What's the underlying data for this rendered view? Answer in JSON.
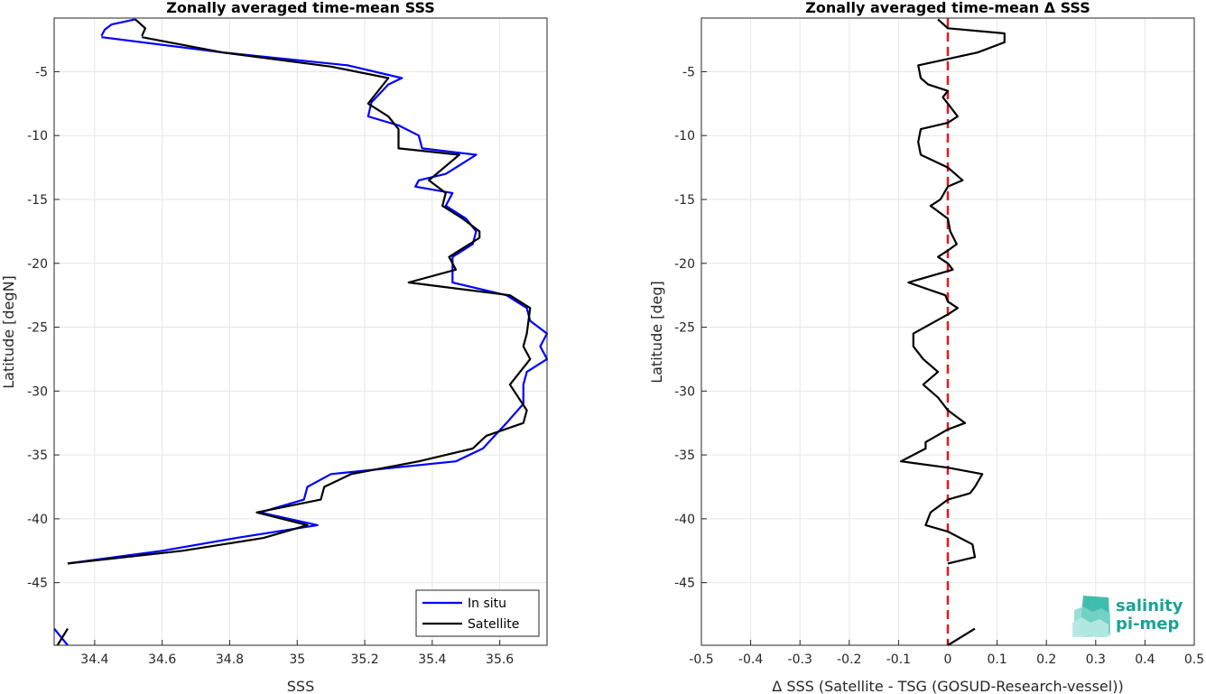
{
  "chart_data": [
    {
      "type": "line",
      "title": "Zonally averaged time-mean SSS",
      "xlabel": "SSS",
      "ylabel": "Latitude [degN]",
      "xlim": [
        34.28,
        35.74
      ],
      "ylim": [
        -49.9,
        -0.8
      ],
      "xticks": [
        34.4,
        34.6,
        34.8,
        35,
        35.2,
        35.4,
        35.6
      ],
      "xtick_labels": [
        "34.4",
        "34.6",
        "34.8",
        "35",
        "35.2",
        "35.4",
        "35.6"
      ],
      "yticks": [
        -5,
        -10,
        -15,
        -20,
        -25,
        -30,
        -35,
        -40,
        -45
      ],
      "ytick_labels": [
        "-5",
        "-10",
        "-15",
        "-20",
        "-25",
        "-30",
        "-35",
        "-40",
        "-45"
      ],
      "grid": true,
      "legend": "bottom-right",
      "series": [
        {
          "name": "In situ",
          "color": "#0000ff",
          "segments": [
            [
              [
                34.52,
                -0.9
              ],
              [
                34.45,
                -1.3
              ],
              [
                34.43,
                -1.7
              ],
              [
                34.42,
                -2.2
              ]
            ],
            [
              [
                34.42,
                -2.3
              ],
              [
                34.78,
                -3.5
              ],
              [
                35.15,
                -4.5
              ],
              [
                35.31,
                -5.5
              ],
              [
                35.27,
                -6.0
              ],
              [
                35.22,
                -7.4
              ],
              [
                35.21,
                -8.5
              ],
              [
                35.3,
                -9.2
              ],
              [
                35.36,
                -10.0
              ],
              [
                35.37,
                -11.0
              ],
              [
                35.53,
                -11.5
              ],
              [
                35.44,
                -13.0
              ],
              [
                35.36,
                -13.5
              ],
              [
                35.35,
                -14.0
              ],
              [
                35.46,
                -14.5
              ],
              [
                35.44,
                -15.5
              ],
              [
                35.5,
                -16.5
              ],
              [
                35.53,
                -17.5
              ],
              [
                35.52,
                -18.5
              ],
              [
                35.46,
                -19.5
              ],
              [
                35.46,
                -20.5
              ],
              [
                35.46,
                -21.5
              ],
              [
                35.62,
                -22.5
              ],
              [
                35.68,
                -23.5
              ],
              [
                35.69,
                -24.5
              ],
              [
                35.74,
                -25.5
              ],
              [
                35.72,
                -26.5
              ],
              [
                35.74,
                -27.5
              ],
              [
                35.68,
                -28.5
              ],
              [
                35.67,
                -29.5
              ],
              [
                35.67,
                -31.0
              ],
              [
                35.62,
                -32.5
              ],
              [
                35.55,
                -34.5
              ],
              [
                35.47,
                -35.5
              ],
              [
                35.1,
                -36.5
              ],
              [
                35.03,
                -37.5
              ],
              [
                35.02,
                -38.5
              ],
              [
                34.89,
                -39.5
              ],
              [
                35.06,
                -40.5
              ],
              [
                34.82,
                -41.5
              ],
              [
                34.6,
                -42.5
              ],
              [
                34.32,
                -43.5
              ]
            ],
            [
              [
                34.28,
                -48.6
              ],
              [
                34.32,
                -49.9
              ]
            ]
          ]
        },
        {
          "name": "Satellite",
          "color": "#000000",
          "segments": [
            [
              [
                34.52,
                -0.9
              ],
              [
                34.55,
                -1.6
              ],
              [
                34.54,
                -2.2
              ]
            ],
            [
              [
                34.54,
                -2.3
              ],
              [
                34.78,
                -3.5
              ],
              [
                35.1,
                -4.6
              ],
              [
                35.27,
                -5.5
              ],
              [
                35.21,
                -7.5
              ],
              [
                35.27,
                -8.5
              ],
              [
                35.3,
                -9.5
              ],
              [
                35.3,
                -11.0
              ],
              [
                35.48,
                -11.5
              ],
              [
                35.39,
                -13.5
              ],
              [
                35.44,
                -14.5
              ],
              [
                35.43,
                -15.5
              ],
              [
                35.49,
                -16.5
              ],
              [
                35.54,
                -17.5
              ],
              [
                35.54,
                -18.0
              ],
              [
                35.45,
                -19.5
              ],
              [
                35.47,
                -20.5
              ],
              [
                35.33,
                -21.5
              ],
              [
                35.63,
                -22.5
              ],
              [
                35.69,
                -23.5
              ],
              [
                35.68,
                -25.5
              ],
              [
                35.67,
                -26.5
              ],
              [
                35.69,
                -27.5
              ],
              [
                35.66,
                -28.5
              ],
              [
                35.63,
                -29.5
              ],
              [
                35.68,
                -31.5
              ],
              [
                35.67,
                -32.5
              ],
              [
                35.56,
                -33.5
              ],
              [
                35.52,
                -34.5
              ],
              [
                35.36,
                -35.5
              ],
              [
                35.16,
                -36.5
              ],
              [
                35.08,
                -37.5
              ],
              [
                35.07,
                -38.5
              ],
              [
                34.88,
                -39.5
              ],
              [
                35.03,
                -40.5
              ],
              [
                34.9,
                -41.5
              ],
              [
                34.66,
                -42.5
              ],
              [
                34.32,
                -43.5
              ]
            ],
            [
              [
                34.32,
                -48.6
              ],
              [
                34.29,
                -49.9
              ]
            ]
          ]
        }
      ]
    },
    {
      "type": "line",
      "title": "Zonally averaged time-mean Δ SSS",
      "xlabel": "Δ SSS (Satellite - TSG (GOSUD-Research-vessel))",
      "ylabel": "Latitude [deg]",
      "xlim": [
        -0.5,
        0.5
      ],
      "ylim": [
        -49.9,
        -0.8
      ],
      "xticks": [
        -0.5,
        -0.4,
        -0.3,
        -0.2,
        -0.1,
        0,
        0.1,
        0.2,
        0.3,
        0.4,
        0.5
      ],
      "xtick_labels": [
        "-0.5",
        "-0.4",
        "-0.3",
        "-0.2",
        "-0.1",
        "0",
        "0.1",
        "0.2",
        "0.3",
        "0.4",
        "0.5"
      ],
      "yticks": [
        -5,
        -10,
        -15,
        -20,
        -25,
        -30,
        -35,
        -40,
        -45
      ],
      "ytick_labels": [
        "-5",
        "-10",
        "-15",
        "-20",
        "-25",
        "-30",
        "-35",
        "-40",
        "-45"
      ],
      "grid": true,
      "reference_line": {
        "x": 0,
        "color": "#e31a1c",
        "style": "dashed"
      },
      "series": [
        {
          "color": "#000000",
          "segments": [
            [
              [
                -0.02,
                -0.9
              ],
              [
                0.0,
                -1.6
              ],
              [
                0.115,
                -2.0
              ],
              [
                0.115,
                -2.7
              ],
              [
                0.06,
                -3.5
              ],
              [
                -0.06,
                -4.5
              ],
              [
                -0.055,
                -5.5
              ],
              [
                -0.04,
                -6.0
              ],
              [
                0.0,
                -6.5
              ],
              [
                -0.01,
                -7.0
              ],
              [
                0.0,
                -7.5
              ],
              [
                0.02,
                -8.5
              ],
              [
                0.0,
                -9.0
              ],
              [
                -0.055,
                -9.5
              ],
              [
                -0.06,
                -10.5
              ],
              [
                -0.055,
                -11.5
              ],
              [
                0.0,
                -12.5
              ],
              [
                0.03,
                -13.5
              ],
              [
                0.0,
                -14.0
              ],
              [
                -0.015,
                -15.0
              ],
              [
                -0.035,
                -15.5
              ],
              [
                0.0,
                -16.5
              ],
              [
                0.005,
                -17.5
              ],
              [
                0.018,
                -18.5
              ],
              [
                0.0,
                -19.0
              ],
              [
                -0.02,
                -19.5
              ],
              [
                0.0,
                -20.0
              ],
              [
                0.01,
                -20.5
              ],
              [
                -0.08,
                -21.5
              ],
              [
                -0.005,
                -22.5
              ],
              [
                0.0,
                -23.0
              ],
              [
                0.02,
                -23.5
              ],
              [
                0.0,
                -24.0
              ],
              [
                -0.07,
                -25.5
              ],
              [
                -0.07,
                -26.5
              ],
              [
                -0.05,
                -27.5
              ],
              [
                -0.02,
                -28.5
              ],
              [
                -0.05,
                -29.5
              ],
              [
                -0.02,
                -30.5
              ],
              [
                0.0,
                -31.5
              ],
              [
                0.035,
                -32.5
              ],
              [
                0.0,
                -33.0
              ],
              [
                -0.045,
                -34.0
              ],
              [
                -0.045,
                -34.5
              ],
              [
                -0.095,
                -35.5
              ],
              [
                0.0,
                -36.0
              ],
              [
                0.07,
                -36.5
              ],
              [
                0.055,
                -37.5
              ],
              [
                0.045,
                -38.0
              ],
              [
                0.0,
                -38.5
              ],
              [
                -0.035,
                -39.5
              ],
              [
                -0.045,
                -40.5
              ],
              [
                0.0,
                -41.0
              ],
              [
                0.05,
                -42.0
              ],
              [
                0.055,
                -43.0
              ],
              [
                0.0,
                -43.5
              ]
            ],
            [
              [
                0.0,
                -49.9
              ],
              [
                0.055,
                -48.6
              ]
            ]
          ]
        }
      ]
    }
  ],
  "legend": {
    "items": [
      {
        "label": "In situ",
        "color": "#0000ff"
      },
      {
        "label": "Satellite",
        "color": "#000000"
      }
    ]
  },
  "logo": {
    "line1": "salinity",
    "line2": "pi-mep"
  }
}
